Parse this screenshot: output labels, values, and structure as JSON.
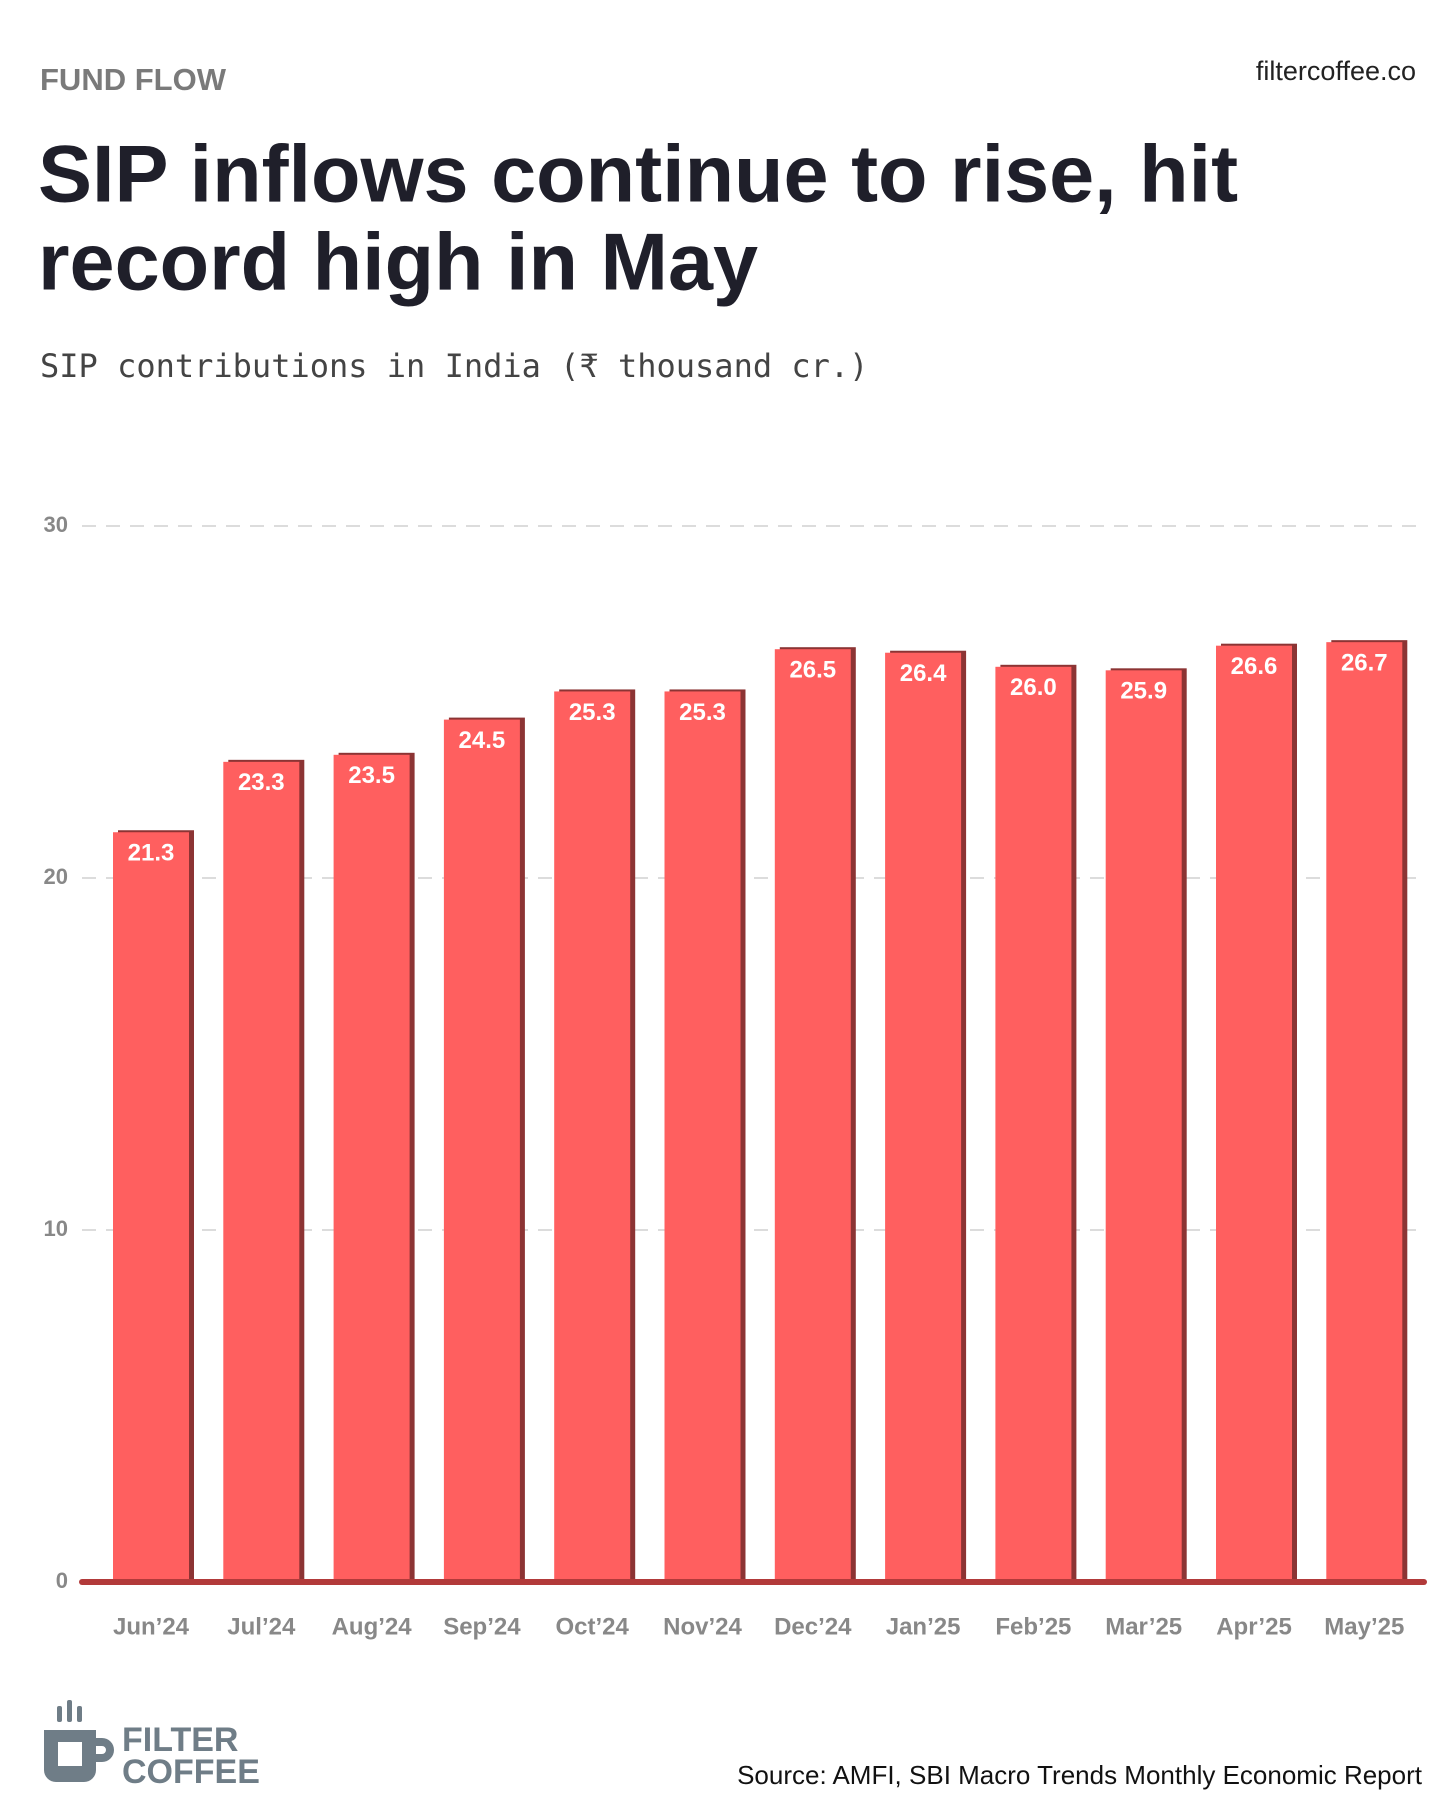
{
  "kicker": "FUND FLOW",
  "site": "filtercoffee.co",
  "source": "Source: AMFI, SBI Macro Trends Monthly Economic Report",
  "logo": [
    "FILTER",
    "COFFEE"
  ],
  "chart_data": {
    "type": "bar",
    "title": [
      "SIP inflows continue to rise, hit",
      "record high in May"
    ],
    "subtitle": "SIP contributions in India (₹ thousand cr.)",
    "categories": [
      "Jun’24",
      "Jul’24",
      "Aug’24",
      "Sep’24",
      "Oct’24",
      "Nov’24",
      "Dec’24",
      "Jan’25",
      "Feb’25",
      "Mar’25",
      "Apr’25",
      "May’25"
    ],
    "values": [
      21.3,
      23.3,
      23.5,
      24.5,
      25.3,
      25.3,
      26.5,
      26.4,
      26.0,
      25.9,
      26.6,
      26.7
    ],
    "value_labels": [
      "21.3",
      "23.3",
      "23.5",
      "24.5",
      "25.3",
      "25.3",
      "26.5",
      "26.4",
      "26.0",
      "25.9",
      "26.6",
      "26.7"
    ],
    "color": "#ff5f5f",
    "ylim": [
      0,
      30
    ],
    "yticks": [
      0,
      10,
      20,
      30
    ],
    "grid": true
  }
}
